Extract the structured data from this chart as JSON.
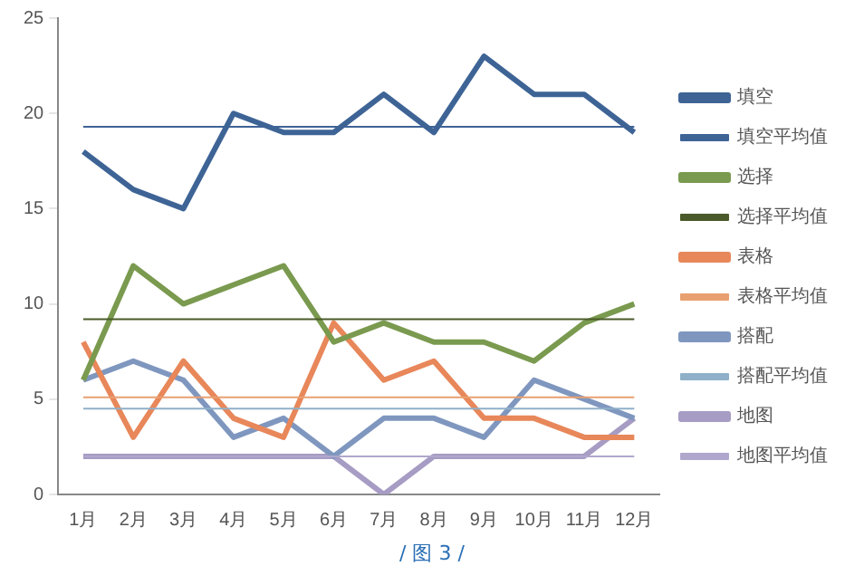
{
  "chart_data": {
    "type": "line",
    "categories": [
      "1月",
      "2月",
      "3月",
      "4月",
      "5月",
      "6月",
      "7月",
      "8月",
      "9月",
      "10月",
      "11月",
      "12月"
    ],
    "ylim": [
      0,
      25
    ],
    "yticks": [
      0,
      5,
      10,
      15,
      20,
      25
    ],
    "grid": false,
    "legend": "right",
    "marker": "none",
    "line_style": "solid",
    "annotations": [
      "/ 图 3 /"
    ],
    "series": [
      {
        "name": "填空",
        "color": "#3e6496",
        "values": [
          18,
          16,
          15,
          20,
          19,
          19,
          21,
          19,
          23,
          21,
          21,
          19
        ]
      },
      {
        "name": "填空平均值",
        "color": "#3e6496",
        "values": [
          19.3,
          19.3,
          19.3,
          19.3,
          19.3,
          19.3,
          19.3,
          19.3,
          19.3,
          19.3,
          19.3,
          19.3
        ]
      },
      {
        "name": "选择",
        "color": "#7a9a4f",
        "values": [
          6,
          12,
          10,
          11,
          12,
          8,
          9,
          8,
          8,
          7,
          9,
          10
        ]
      },
      {
        "name": "选择平均值",
        "color": "#4a5a2a",
        "values": [
          9.2,
          9.2,
          9.2,
          9.2,
          9.2,
          9.2,
          9.2,
          9.2,
          9.2,
          9.2,
          9.2,
          9.2
        ]
      },
      {
        "name": "表格",
        "color": "#e8875a",
        "values": [
          8,
          3,
          7,
          4,
          3,
          9,
          6,
          7,
          4,
          4,
          3,
          3
        ]
      },
      {
        "name": "表格平均值",
        "color": "#e8a070",
        "values": [
          5.1,
          5.1,
          5.1,
          5.1,
          5.1,
          5.1,
          5.1,
          5.1,
          5.1,
          5.1,
          5.1,
          5.1
        ]
      },
      {
        "name": "搭配",
        "color": "#7f97bf",
        "values": [
          6,
          7,
          6,
          3,
          4,
          2,
          4,
          4,
          3,
          6,
          5,
          4
        ]
      },
      {
        "name": "搭配平均值",
        "color": "#8fb0c8",
        "values": [
          4.5,
          4.5,
          4.5,
          4.5,
          4.5,
          4.5,
          4.5,
          4.5,
          4.5,
          4.5,
          4.5,
          4.5
        ]
      },
      {
        "name": "地图",
        "color": "#a79cc4",
        "values": [
          2,
          2,
          2,
          2,
          2,
          2,
          0,
          2,
          2,
          2,
          2,
          4
        ]
      },
      {
        "name": "地图平均值",
        "color": "#b0a8cc",
        "values": [
          2,
          2,
          2,
          2,
          2,
          2,
          2,
          2,
          2,
          2,
          2,
          2
        ]
      }
    ]
  }
}
